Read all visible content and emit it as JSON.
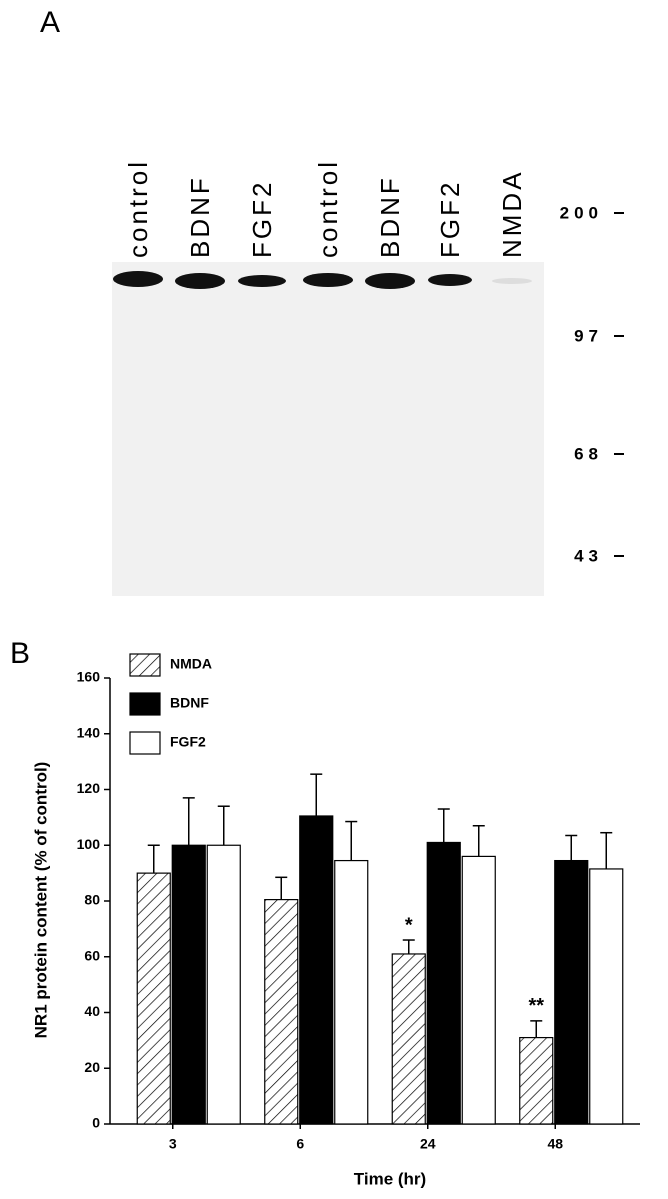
{
  "panel_a": {
    "label": "A",
    "lanes": [
      "control",
      "BDNF",
      "FGF2",
      "control",
      "BDNF",
      "FGF2",
      "NMDA"
    ],
    "markers": [
      200,
      97,
      68,
      43
    ]
  },
  "chart_data": {
    "type": "bar",
    "panel_label": "B",
    "x_label": "Time (hr)",
    "y_label": "NR1 protein content (% of control)",
    "categories": [
      "3",
      "6",
      "24",
      "48"
    ],
    "series": [
      {
        "name": "NMDA",
        "color": "#000000",
        "hatch": true,
        "values": [
          90,
          80.5,
          61,
          31
        ],
        "errors": [
          10,
          8,
          5,
          6
        ]
      },
      {
        "name": "BDNF",
        "color": "#000000",
        "hatch": false,
        "values": [
          100,
          110.5,
          101,
          94.5
        ],
        "errors": [
          17,
          15,
          12,
          9
        ]
      },
      {
        "name": "FGF2",
        "color": "#ffffff",
        "hatch": false,
        "values": [
          100,
          94.5,
          96,
          91.5
        ],
        "errors": [
          14,
          14,
          11,
          13
        ]
      }
    ],
    "annotations": [
      {
        "text": "*",
        "x": "24",
        "series": "NMDA"
      },
      {
        "text": "**",
        "x": "48",
        "series": "NMDA"
      }
    ],
    "ylim": [
      0,
      160
    ],
    "yticks": [
      0,
      20,
      40,
      60,
      80,
      100,
      120,
      140,
      160
    ],
    "legend": "upper left"
  }
}
